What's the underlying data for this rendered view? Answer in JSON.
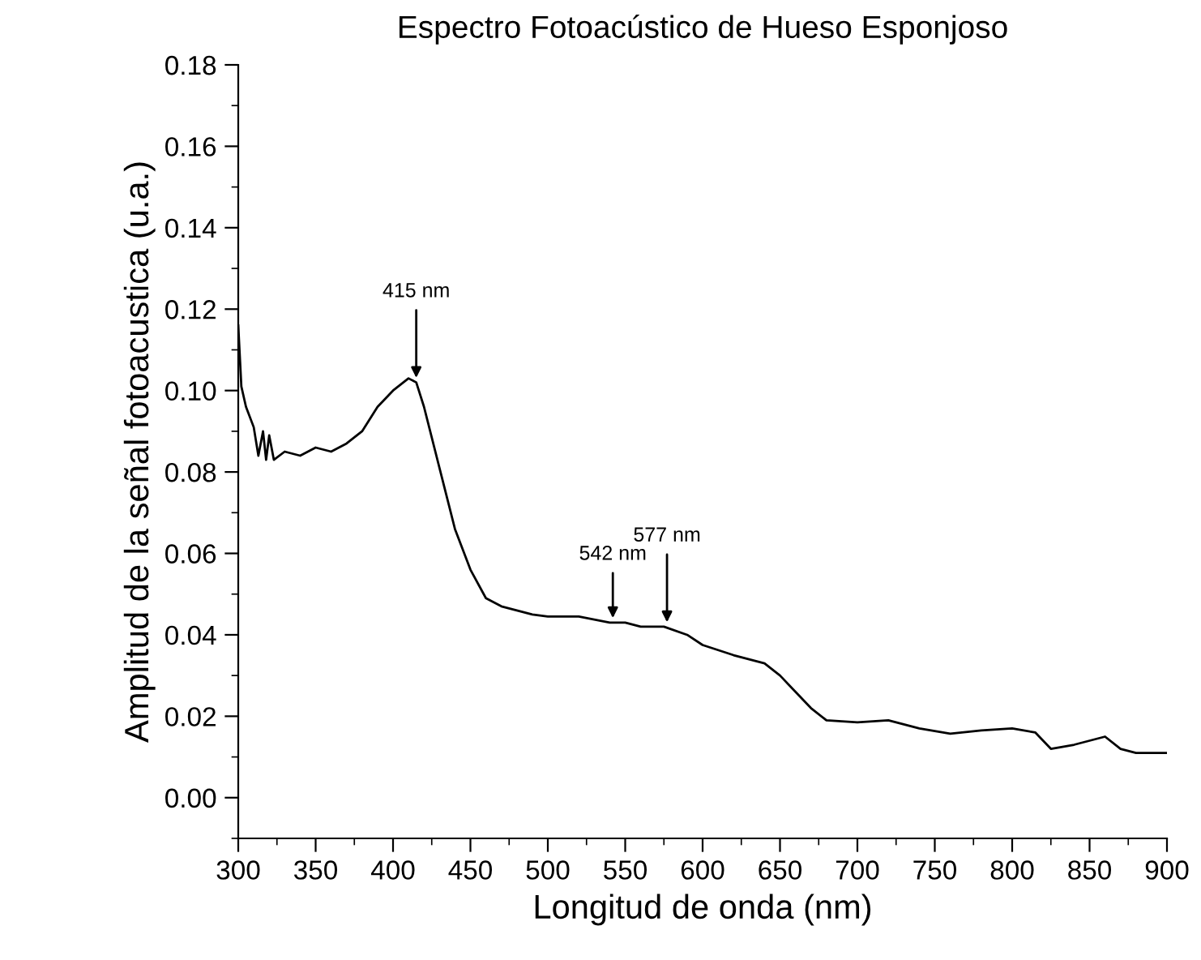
{
  "chart_data": {
    "type": "line",
    "title": "Espectro Fotoacústico de Hueso Esponjoso",
    "xlabel": "Longitud de onda (nm)",
    "ylabel": "Amplitud de la señal fotoacustica (u.a.)",
    "x": [
      300,
      302,
      305,
      310,
      313,
      316,
      318,
      320,
      323,
      330,
      340,
      350,
      360,
      370,
      380,
      390,
      400,
      410,
      415,
      420,
      430,
      440,
      450,
      460,
      470,
      480,
      490,
      500,
      520,
      540,
      550,
      560,
      575,
      590,
      600,
      620,
      640,
      650,
      660,
      670,
      680,
      700,
      720,
      740,
      760,
      780,
      800,
      815,
      825,
      840,
      860,
      870,
      880,
      900
    ],
    "series": [
      {
        "color": "#000000",
        "values": [
          0.116,
          0.101,
          0.096,
          0.091,
          0.084,
          0.09,
          0.083,
          0.089,
          0.083,
          0.085,
          0.084,
          0.086,
          0.085,
          0.087,
          0.09,
          0.096,
          0.1,
          0.103,
          0.102,
          0.096,
          0.081,
          0.066,
          0.056,
          0.049,
          0.047,
          0.046,
          0.045,
          0.0445,
          0.0445,
          0.043,
          0.043,
          0.042,
          0.042,
          0.04,
          0.0375,
          0.035,
          0.033,
          0.03,
          0.026,
          0.022,
          0.019,
          0.0185,
          0.019,
          0.017,
          0.0157,
          0.0165,
          0.017,
          0.016,
          0.012,
          0.013,
          0.015,
          0.012,
          0.011,
          0.011
        ]
      }
    ],
    "annotations": [
      {
        "text": "415 nm",
        "x": 415,
        "y": 0.102
      },
      {
        "text": "542 nm",
        "x": 542,
        "y": 0.043
      },
      {
        "text": "577 nm",
        "x": 577,
        "y": 0.042
      }
    ],
    "xlim": [
      300,
      900
    ],
    "xticks": [
      300,
      350,
      400,
      450,
      500,
      550,
      600,
      650,
      700,
      750,
      800,
      850,
      900
    ],
    "ylim": [
      -0.01,
      0.18
    ],
    "yticks": [
      {
        "value": 0,
        "label": "0.00"
      },
      {
        "value": 0.02,
        "label": "0.02"
      },
      {
        "value": 0.04,
        "label": "0.04"
      },
      {
        "value": 0.06,
        "label": "0.06"
      },
      {
        "value": 0.08,
        "label": "0.08"
      },
      {
        "value": 0.1,
        "label": "0.10"
      },
      {
        "value": 0.12,
        "label": "0.12"
      },
      {
        "value": 0.14,
        "label": "0.14"
      },
      {
        "value": 0.16,
        "label": "0.16"
      },
      {
        "value": 0.18,
        "label": "0.18"
      }
    ],
    "grid": false,
    "legend": false
  }
}
